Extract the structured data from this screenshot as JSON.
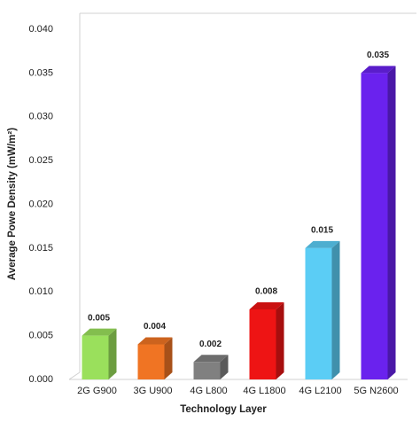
{
  "chart_data": {
    "type": "bar3d",
    "x_label": "Technology Layer",
    "y_label": "Average  Powe Density (mW/m²)",
    "categories": [
      "2G G900",
      "3G U900",
      "4G L800",
      "4G L1800",
      "4G L2100",
      "5G N2600"
    ],
    "values": [
      0.005,
      0.004,
      0.002,
      0.008,
      0.015,
      0.035
    ],
    "colors": [
      "#9ae05c",
      "#f07423",
      "#808080",
      "#ee1414",
      "#5bcdf5",
      "#6a22ee"
    ],
    "ylim": [
      0,
      0.04
    ],
    "yticks": [
      {
        "value": 0,
        "label": "0.000"
      },
      0.005,
      {
        "value": 0.01,
        "label": "0.010"
      },
      0.015,
      {
        "value": 0.02,
        "label": "0.020"
      },
      0.025,
      {
        "value": 0.03,
        "label": "0.030"
      },
      0.035,
      {
        "value": 0.04,
        "label": "0.040"
      }
    ]
  }
}
